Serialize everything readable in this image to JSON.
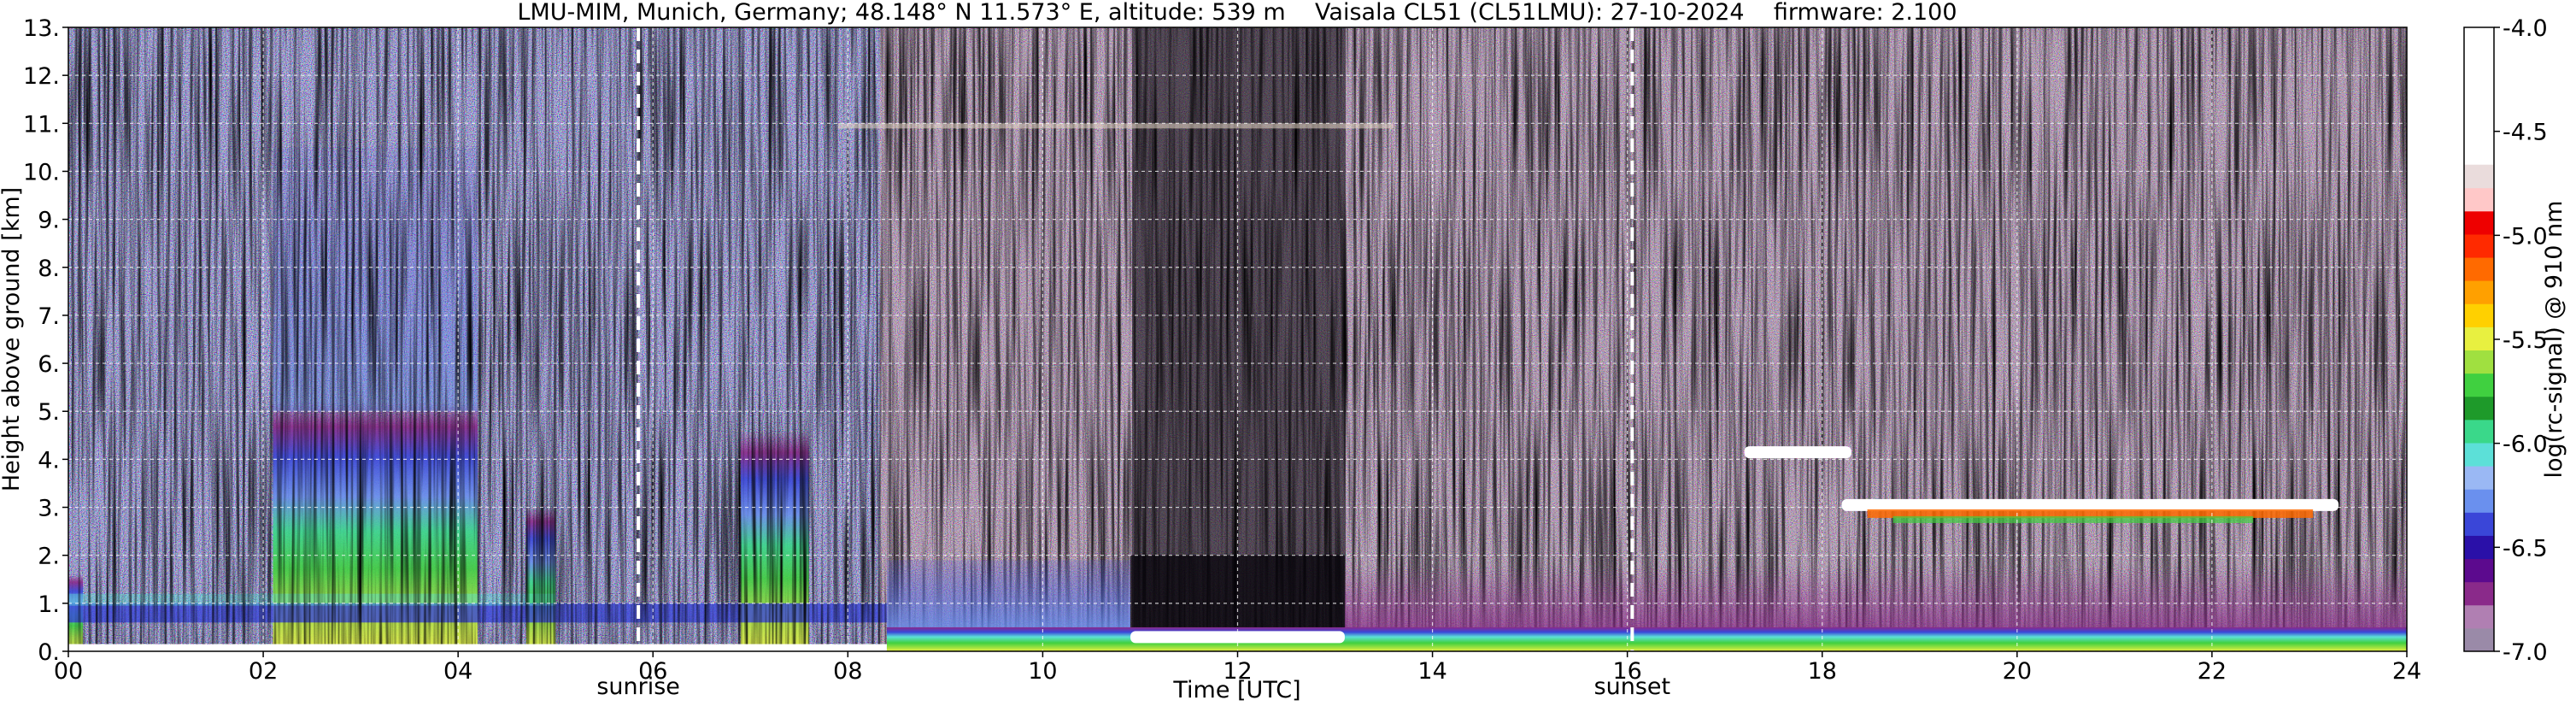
{
  "chart_data": {
    "type": "heatmap",
    "title": "LMU-MIM, Munich, Germany; 48.148° N 11.573° E, altitude: 539 m    Vaisala CL51 (CL51LMU): 27-10-2024    firmware: 2.100",
    "xlabel": "Time [UTC]",
    "ylabel": "Height above ground [km]",
    "colorbar_label": "log(rc-signal) @ 910 nm",
    "xlim": [
      0,
      24
    ],
    "ylim": [
      0,
      13
    ],
    "x_ticks": [
      "00",
      "02",
      "04",
      "06",
      "08",
      "10",
      "12",
      "14",
      "16",
      "18",
      "20",
      "22",
      "24"
    ],
    "y_ticks": [
      "0.",
      "1.",
      "2.",
      "3.",
      "4.",
      "5.",
      "6.",
      "7.",
      "8.",
      "9.",
      "10.",
      "11.",
      "12.",
      "13."
    ],
    "colorbar_range": [
      -7.0,
      -4.0
    ],
    "colorbar_ticks": [
      "-7.0",
      "-6.5",
      "-6.0",
      "-5.5",
      "-5.0",
      "-4.5",
      "-4.0"
    ],
    "grid": true,
    "markers": [
      {
        "label": "sunrise",
        "x": 5.85
      },
      {
        "label": "sunset",
        "x": 16.05
      }
    ],
    "colormap": [
      "#9a8aa8",
      "#b07fb2",
      "#8a2a8a",
      "#5c0a8e",
      "#2a10a8",
      "#3a46d8",
      "#6a90ee",
      "#9ab8f4",
      "#5ce0d8",
      "#3ad88a",
      "#1e9a2a",
      "#40d040",
      "#a0e040",
      "#e8f040",
      "#ffd000",
      "#ffa000",
      "#ff6a00",
      "#ff2a00",
      "#ee0000",
      "#ffc8c8",
      "#eadcdc",
      "#ffffff"
    ],
    "features": [
      {
        "name": "boundary layer aerosol",
        "x_range": [
          8.4,
          24
        ],
        "top_km": 0.5
      },
      {
        "name": "cloud layer",
        "x_range": [
          18.2,
          23.3
        ],
        "height_km": 3.1
      },
      {
        "name": "cloud layer",
        "x_range": [
          17.2,
          18.3
        ],
        "height_km": 4.2
      },
      {
        "name": "low cloud",
        "x_range": [
          10.9,
          13.1
        ],
        "height_km": 0.35
      }
    ]
  }
}
